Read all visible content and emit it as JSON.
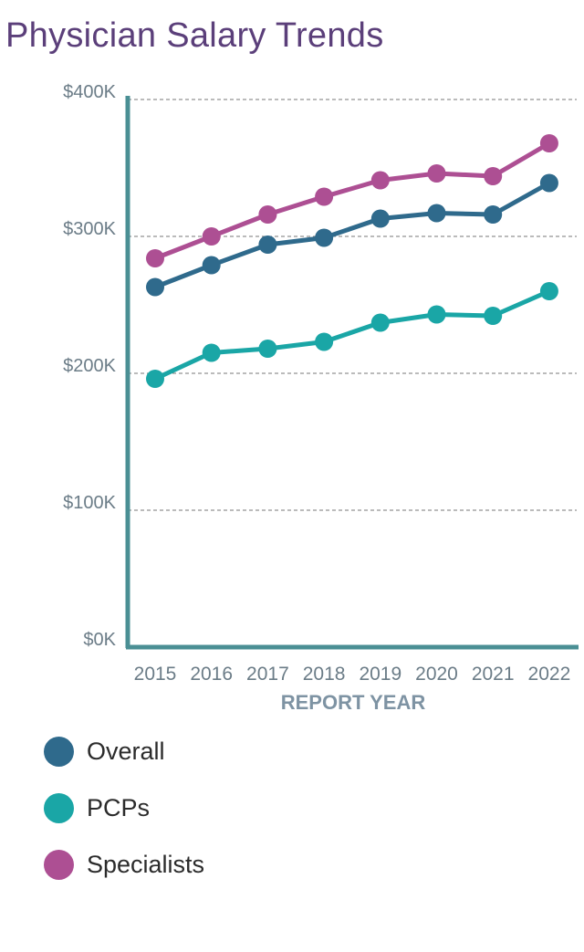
{
  "chart_data": {
    "type": "line",
    "title": "Physician Salary Trends",
    "xlabel": "REPORT YEAR",
    "ylabel": "",
    "categories": [
      "2015",
      "2016",
      "2017",
      "2018",
      "2019",
      "2020",
      "2021",
      "2022"
    ],
    "yticks": [
      {
        "value": 0,
        "label": "$0K"
      },
      {
        "value": 100,
        "label": "$100K"
      },
      {
        "value": 200,
        "label": "$200K"
      },
      {
        "value": 300,
        "label": "$300K"
      },
      {
        "value": 400,
        "label": "$400K"
      }
    ],
    "ylim": [
      0,
      400
    ],
    "grid": true,
    "legend_position": "bottom-left",
    "series": [
      {
        "name": "Overall",
        "color": "#2f6a8c",
        "values": [
          263,
          279,
          294,
          299,
          313,
          317,
          316,
          339
        ]
      },
      {
        "name": "PCPs",
        "color": "#1aa6a6",
        "values": [
          196,
          215,
          218,
          223,
          237,
          243,
          242,
          260
        ]
      },
      {
        "name": "Specialists",
        "color": "#ad4f93",
        "values": [
          284,
          300,
          316,
          329,
          341,
          346,
          344,
          368
        ]
      }
    ],
    "colors": {
      "title": "#5b3f7a",
      "axis": "#4a8f94",
      "grid": "#777777",
      "tick": "#6b7c87",
      "xlabel": "#7e93a3"
    }
  }
}
